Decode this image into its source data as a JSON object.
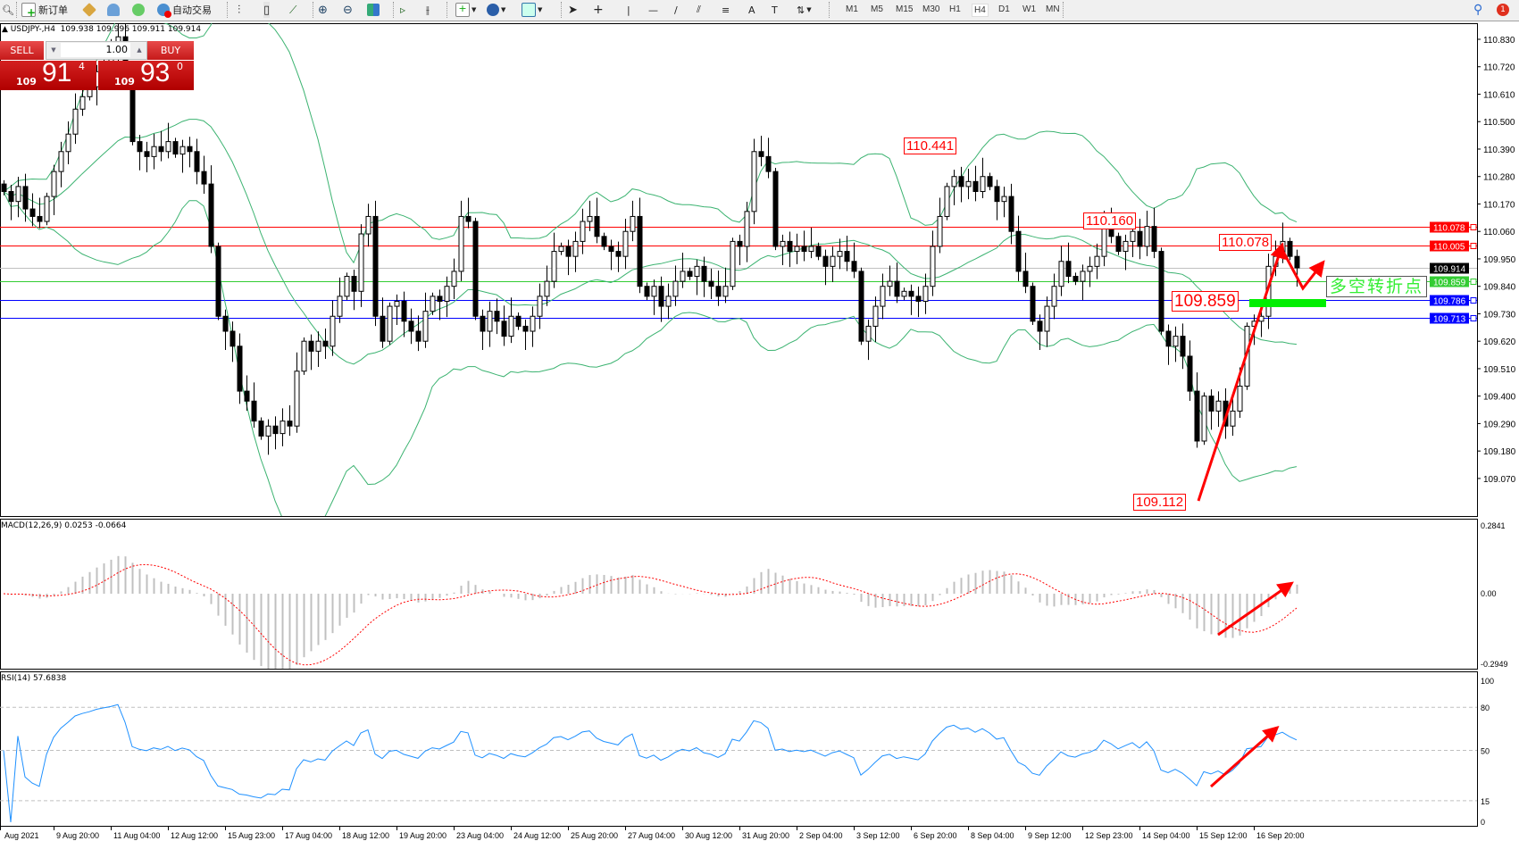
{
  "toolbar": {
    "new_order": "新订单",
    "auto_trading": "自动交易",
    "timeframes": [
      "M1",
      "M5",
      "M15",
      "M30",
      "H1",
      "H4",
      "D1",
      "W1",
      "MN"
    ],
    "active_timeframe": "H4",
    "notification_count": "1",
    "tool_icons": [
      "bar-chart-icon",
      "candlestick-icon",
      "line-chart-icon",
      "zoom-in-icon",
      "zoom-out-icon",
      "tile-windows-icon",
      "autoscroll-icon",
      "chart-shift-icon",
      "indicators-icon",
      "periods-icon",
      "templates-icon",
      "cursor-icon",
      "crosshair-icon",
      "vertical-line-icon",
      "horizontal-line-icon",
      "trendline-icon",
      "equidistant-channel-icon",
      "fibonacci-icon",
      "text-icon",
      "text-label-icon",
      "arrows-icon"
    ]
  },
  "chart": {
    "header": "▲ USDJPY-,H4  109.938 109.996 109.911 109.914"
  },
  "trade_panel": {
    "sell_label": "SELL",
    "buy_label": "BUY",
    "lot": "1.00",
    "bid_prefix": "109",
    "bid_big": "91",
    "bid_sup": "4",
    "ask_prefix": "109",
    "ask_big": "93",
    "ask_sup": "0"
  },
  "chart_data": {
    "type": "candlestick",
    "symbol": "USDJPY-",
    "timeframe": "H4",
    "last_close": 109.914,
    "closes": [
      110.22,
      110.18,
      110.24,
      110.15,
      110.12,
      110.1,
      110.2,
      110.3,
      110.38,
      110.45,
      110.55,
      110.6,
      110.64,
      110.7,
      110.74,
      110.78,
      110.84,
      110.7,
      110.42,
      110.38,
      110.36,
      110.4,
      110.38,
      110.42,
      110.37,
      110.4,
      110.38,
      110.3,
      110.25,
      110.0,
      109.72,
      109.66,
      109.6,
      109.42,
      109.38,
      109.3,
      109.24,
      109.28,
      109.25,
      109.3,
      109.28,
      109.5,
      109.62,
      109.58,
      109.62,
      109.6,
      109.72,
      109.8,
      109.88,
      109.82,
      110.05,
      110.12,
      109.72,
      109.62,
      109.76,
      109.78,
      109.7,
      109.66,
      109.62,
      109.74,
      109.8,
      109.78,
      109.84,
      109.9,
      110.12,
      110.1,
      109.72,
      109.66,
      109.74,
      109.7,
      109.64,
      109.72,
      109.68,
      109.66,
      109.72,
      109.8,
      109.86,
      109.98,
      110.0,
      109.96,
      110.02,
      110.1,
      110.12,
      110.04,
      110.0,
      109.98,
      109.96,
      110.06,
      110.12,
      109.84,
      109.8,
      109.84,
      109.76,
      109.8,
      109.86,
      109.9,
      109.88,
      109.92,
      109.86,
      109.84,
      109.8,
      109.84,
      110.02,
      110.0,
      110.14,
      110.38,
      110.36,
      110.3,
      110.0,
      110.02,
      109.98,
      110.0,
      109.98,
      110.0,
      109.96,
      109.92,
      109.96,
      109.98,
      109.94,
      109.9,
      109.62,
      109.68,
      109.76,
      109.84,
      109.86,
      109.8,
      109.82,
      109.8,
      109.78,
      109.84,
      110.0,
      110.12,
      110.24,
      110.28,
      110.24,
      110.26,
      110.22,
      110.28,
      110.24,
      110.18,
      110.2,
      110.06,
      109.9,
      109.84,
      109.7,
      109.66,
      109.76,
      109.84,
      109.94,
      109.88,
      109.86,
      109.9,
      109.92,
      109.96,
      110.08,
      110.04,
      109.98,
      110.02,
      110.06,
      110.0,
      110.08,
      109.98,
      109.66,
      109.6,
      109.64,
      109.56,
      109.42,
      109.22,
      109.4,
      109.34,
      109.38,
      109.28,
      109.34,
      109.44,
      109.68,
      109.7,
      109.72,
      109.92,
      109.96,
      110.02,
      109.96,
      109.914
    ],
    "price_axis": {
      "ticks": [
        "110.830",
        "110.720",
        "110.610",
        "110.500",
        "110.390",
        "110.280",
        "110.170",
        "110.060",
        "109.950",
        "109.840",
        "109.730",
        "109.620",
        "109.510",
        "109.400",
        "109.290",
        "109.180",
        "109.070"
      ],
      "range": [
        109.04,
        110.9
      ]
    },
    "horizontal_lines": [
      {
        "price": "110.078",
        "color": "#ff0000"
      },
      {
        "price": "110.005",
        "color": "#ff0000"
      },
      {
        "price": "109.914",
        "color": "#000000",
        "line_color": "#c0c0c0"
      },
      {
        "price": "109.859",
        "color": "#33cc33"
      },
      {
        "price": "109.786",
        "color": "#0000ff"
      },
      {
        "price": "109.713",
        "color": "#0000ff"
      }
    ],
    "annotations": {
      "high_1": "110.441",
      "high_2": "110.160",
      "high_3": "110.078",
      "support": "109.859",
      "low": "109.112",
      "turning_point": "多空转折点"
    },
    "bollinger_color": "#3cb371",
    "time_labels": [
      "Aug 2021",
      "9 Aug 20:00",
      "11 Aug 04:00",
      "12 Aug 12:00",
      "15 Aug 23:00",
      "17 Aug 04:00",
      "18 Aug 12:00",
      "19 Aug 20:00",
      "23 Aug 04:00",
      "24 Aug 12:00",
      "25 Aug 20:00",
      "27 Aug 04:00",
      "30 Aug 12:00",
      "31 Aug 20:00",
      "2 Sep 04:00",
      "3 Sep 12:00",
      "6 Sep 20:00",
      "8 Sep 04:00",
      "9 Sep 12:00",
      "12 Sep 23:00",
      "14 Sep 04:00",
      "15 Sep 12:00",
      "16 Sep 20:00"
    ]
  },
  "macd": {
    "label": "MACD(12,26,9) 0.0253 -0.0664",
    "axis": [
      "0.2841",
      "0.00",
      "-0.2949"
    ],
    "range": [
      -0.2949,
      0.2841
    ],
    "histogram_color": "#c0c0c0",
    "signal_color": "#ff0000"
  },
  "rsi": {
    "label": "RSI(14) 57.6838",
    "axis": [
      "100",
      "80",
      "50",
      "15",
      "0"
    ],
    "levels": [
      80,
      50,
      15
    ],
    "line_color": "#1e90ff"
  }
}
